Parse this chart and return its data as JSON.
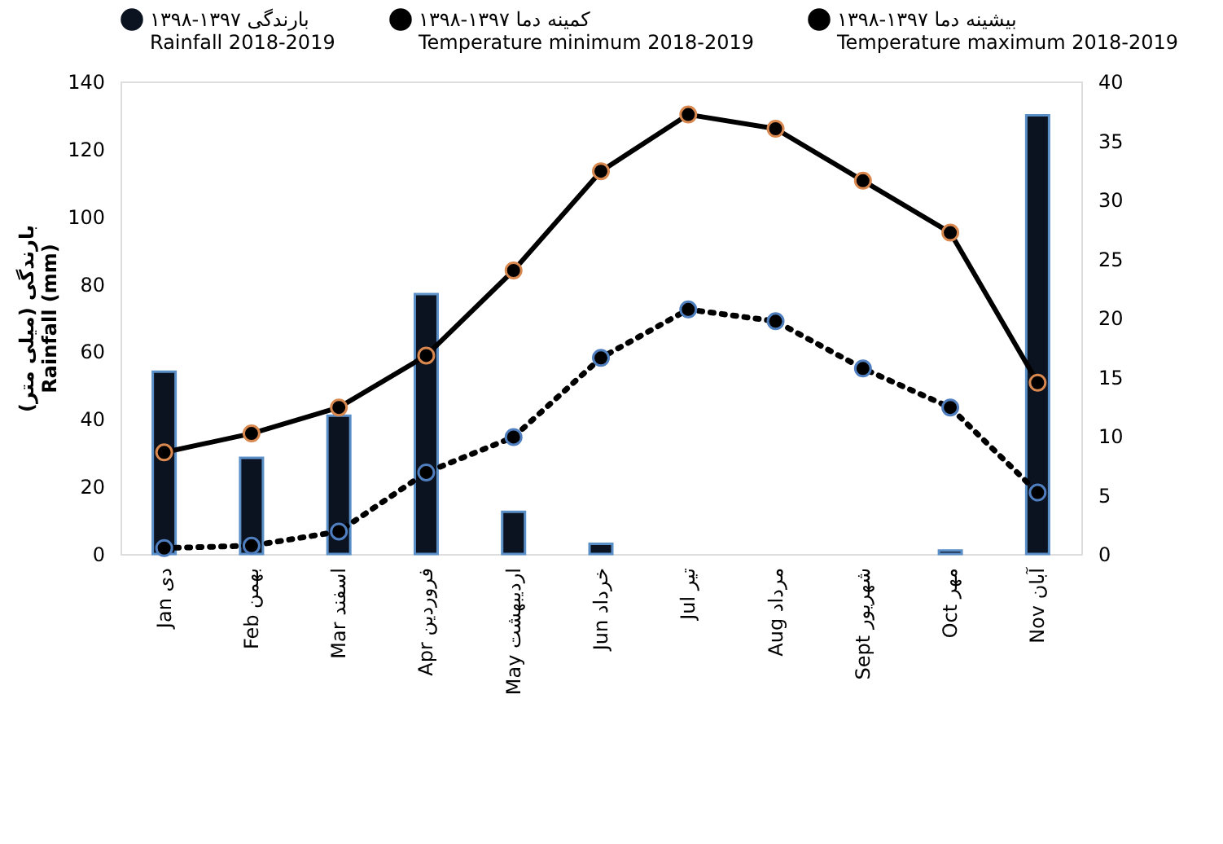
{
  "chart_data": {
    "type": "bar",
    "categories": [
      "Jan دی",
      "Feb بهمن",
      "Mar اسفند",
      "Apr فروردین",
      "May اردیبهشت",
      "Jun خرداد",
      "Jul تیر",
      "Aug مرداد",
      "Sept شهریور",
      "Oct مهر",
      "Nov آبان"
    ],
    "series": [
      {
        "name": "بارندگی ۱۳۹۷-۱۳۹۸\nRainfall 2018-2019",
        "color": "#0b1220",
        "values": [
          54,
          28.5,
          41,
          77,
          12.5,
          3,
          0,
          0,
          0,
          1,
          130
        ]
      },
      {
        "name": "کمینه دما ۱۳۹۷-۱۳۹۸\nTemperature minimum 2018-2019",
        "type": "line",
        "axis": "y2",
        "line_style": "dotted",
        "marker": "circle",
        "color": "#000000",
        "values": [
          0.5,
          0.7,
          1.9,
          6.9,
          9.9,
          16.6,
          20.7,
          19.7,
          15.7,
          12.4,
          5.2
        ]
      },
      {
        "name": "بیشینه دما ۱۳۹۷-۱۳۹۸\nTemperature maximum 2018-2019",
        "type": "line",
        "axis": "y2",
        "line_style": "solid",
        "marker": "circle",
        "color": "#000000",
        "values": [
          8.6,
          10.2,
          12.4,
          16.8,
          24,
          32.4,
          37.2,
          36,
          31.6,
          27.2,
          14.5
        ]
      }
    ],
    "ylabel": "بارندگی (میلی متر)\nRainfall (mm)",
    "ylim": [
      0,
      140
    ],
    "yticks": [
      0,
      20,
      40,
      60,
      80,
      100,
      120,
      140
    ],
    "y2lim": [
      0,
      40
    ],
    "y2ticks": [
      0,
      5,
      10,
      15,
      20,
      25,
      30,
      35,
      40
    ],
    "grid": false,
    "legend": "top"
  }
}
